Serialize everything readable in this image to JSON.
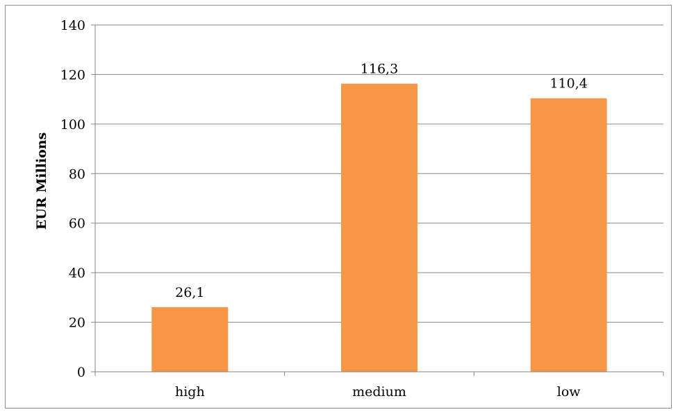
{
  "chart_data": {
    "type": "bar",
    "categories": [
      "high",
      "medium",
      "low"
    ],
    "values": [
      26.1,
      116.3,
      110.4
    ],
    "data_labels": [
      "26,1",
      "116,3",
      "110,4"
    ],
    "title": "",
    "xlabel": "",
    "ylabel": "EUR Millions",
    "ylim": [
      0,
      140
    ],
    "y_ticks": [
      0,
      20,
      40,
      60,
      80,
      100,
      120,
      140
    ],
    "grid": true,
    "legend": "none",
    "bar_color": "#f79646"
  }
}
